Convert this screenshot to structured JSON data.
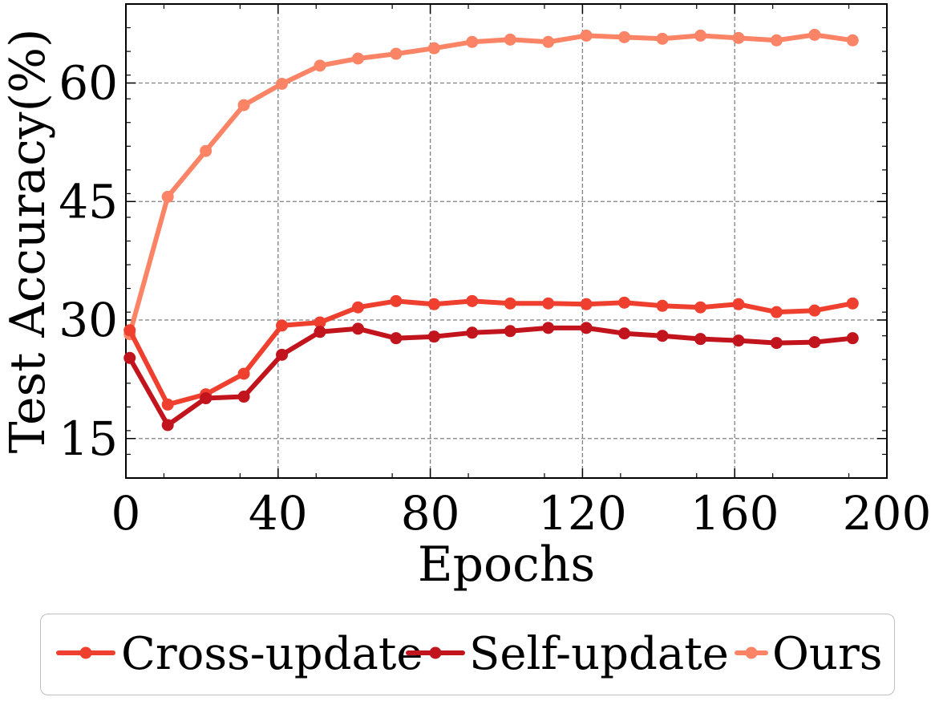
{
  "chart_data": {
    "type": "line",
    "xlabel": "Epochs",
    "ylabel": "Test Accuracy(%)",
    "xlim": [
      0,
      200
    ],
    "ylim": [
      10,
      70
    ],
    "xticks": [
      0,
      40,
      80,
      120,
      160,
      200
    ],
    "yticks": [
      15,
      30,
      45,
      60
    ],
    "xtick_labels": [
      "0",
      "40",
      "80",
      "120",
      "160",
      "200"
    ],
    "ytick_labels": [
      "15",
      "30",
      "45",
      "60"
    ],
    "grid": true,
    "legend_position": "bottom",
    "x": [
      1,
      11,
      21,
      31,
      41,
      51,
      61,
      71,
      81,
      91,
      101,
      111,
      121,
      131,
      141,
      151,
      161,
      171,
      181,
      191
    ],
    "series": [
      {
        "name": "Cross-update",
        "color": "#ee3f2f",
        "values": [
          28.7,
          19.3,
          20.6,
          23.2,
          29.3,
          29.7,
          31.6,
          32.4,
          32.0,
          32.4,
          32.1,
          32.1,
          32.0,
          32.2,
          31.8,
          31.6,
          32.0,
          31.0,
          31.2,
          32.1
        ]
      },
      {
        "name": "Self-update",
        "color": "#c2141d",
        "values": [
          25.2,
          16.7,
          20.1,
          20.3,
          25.6,
          28.5,
          28.9,
          27.7,
          27.9,
          28.4,
          28.6,
          29.0,
          29.0,
          28.3,
          28.0,
          27.6,
          27.4,
          27.1,
          27.2,
          27.7
        ]
      },
      {
        "name": "Ours",
        "color": "#fb8466",
        "values": [
          28.2,
          45.6,
          51.4,
          57.2,
          59.9,
          62.2,
          63.1,
          63.7,
          64.4,
          65.2,
          65.5,
          65.2,
          66.0,
          65.8,
          65.6,
          66.0,
          65.7,
          65.4,
          66.1,
          65.4
        ]
      }
    ]
  }
}
